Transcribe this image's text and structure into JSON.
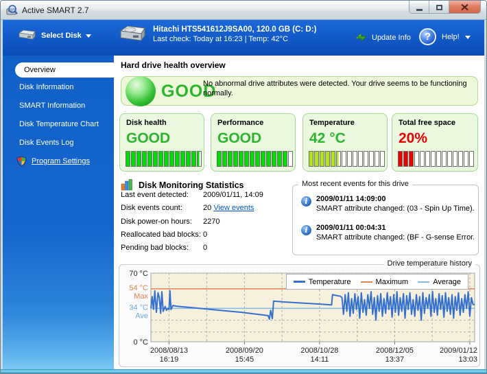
{
  "window": {
    "title": "Active SMART 2.7"
  },
  "toolbar": {
    "select_disk_label": "Select Disk",
    "drive_name": "Hitachi HTS541612J9SA00, 120.0 GB (C: D:)",
    "drive_status": "Last check: Today at 16:23 | Temp: 42°C",
    "update_info_label": "Update Info",
    "help_label": "Help!"
  },
  "sidebar": {
    "items": [
      {
        "label": "Overview",
        "active": true
      },
      {
        "label": "Disk Information"
      },
      {
        "label": "SMART Information"
      },
      {
        "label": "Disk Temperature Chart"
      },
      {
        "label": "Disk Events Log"
      }
    ],
    "settings_label": "Program Settings"
  },
  "main": {
    "heading": "Hard drive health overview",
    "banner": {
      "status": "GOOD",
      "message": "No abnormal drive attributes were detected. Your drive seems to be functioning normally."
    },
    "gauges": [
      {
        "title": "Disk health",
        "value": "GOOD",
        "value_color": "#2db52d",
        "bar_color": "#00dd00",
        "segments": 14,
        "filled": 13.5
      },
      {
        "title": "Performance",
        "value": "GOOD",
        "value_color": "#2db52d",
        "bar_color": "#00dd00",
        "segments": 14,
        "filled": 13
      },
      {
        "title": "Temperature",
        "value": "42 °C",
        "value_color": "#2db52d",
        "bar_color": "#b2e321",
        "segments": 14,
        "filled": 5.5
      },
      {
        "title": "Total free space",
        "value": "20%",
        "value_color": "#e80000",
        "bar_color": "#ee0000",
        "segments": 14,
        "filled": 3
      }
    ],
    "stats": {
      "title": "Disk Monitoring Statistics",
      "rows": [
        {
          "label": "Last event detected:",
          "value": "2009/01/11, 14:09"
        },
        {
          "label": "Disk events count:",
          "value": "20",
          "link": "View events"
        },
        {
          "label": "Disk power-on hours:",
          "value": "2270"
        },
        {
          "label": "Reallocated bad blocks:",
          "value": "0"
        },
        {
          "label": "Pending bad blocks:",
          "value": "0"
        }
      ]
    },
    "events": {
      "title": "Most recent events for this drive",
      "items": [
        {
          "time": "2009/01/11 14:09:00",
          "desc": "SMART attribute changed: (03 - Spin Up Time)..."
        },
        {
          "time": "2009/01/11 00:04:31",
          "desc": "SMART attribute changed: (BF - G-sense Error..."
        }
      ]
    }
  },
  "chart_data": {
    "type": "line",
    "title": "Drive temperature history",
    "ylabel": "Temperature °C",
    "ylim": [
      0,
      70
    ],
    "plot_bg": "#f7f0dd",
    "grid": true,
    "grid_color": "#aeb0a0",
    "grid_h_temps": [
      70,
      22,
      10
    ],
    "y_labels": [
      {
        "text": "70 °C",
        "temp": 70,
        "dy": 4,
        "color": "#222222"
      },
      {
        "text": "54 °C",
        "temp": 54,
        "dy": 2,
        "color": "#e2814e"
      },
      {
        "text": "Max",
        "temp": 54,
        "dy": 14,
        "color": "#e2814e"
      },
      {
        "text": "34 °C",
        "temp": 34,
        "dy": 2,
        "color": "#6aaade"
      },
      {
        "text": "Ave",
        "temp": 34,
        "dy": 14,
        "color": "#6aaade"
      },
      {
        "text": "0 °C",
        "temp": 0,
        "dy": 4,
        "color": "#222222"
      }
    ],
    "x_ticks": [
      {
        "date": "2008/08/13",
        "time": "16:19",
        "pos": 0.056
      },
      {
        "date": "2008/09/20",
        "time": "15:45",
        "pos": 0.289
      },
      {
        "date": "2008/10/28",
        "time": "14:11",
        "pos": 0.521
      },
      {
        "date": "2008/12/05",
        "time": "13:37",
        "pos": 0.753
      },
      {
        "date": "2009/01/12",
        "time": "13:03",
        "pos": 0.985
      }
    ],
    "series": [
      {
        "name": "Temperature",
        "color": "#3470cf",
        "width": 2,
        "points": [
          [
            0,
            34
          ],
          [
            0.4,
            46
          ],
          [
            0.8,
            33
          ],
          [
            1.2,
            52
          ],
          [
            1.7,
            30
          ],
          [
            2.2,
            50
          ],
          [
            2.6,
            45
          ],
          [
            3,
            29
          ],
          [
            3.4,
            51
          ],
          [
            3.8,
            31
          ],
          [
            4.4,
            36
          ],
          [
            4.8,
            32
          ],
          [
            5.2,
            34
          ],
          [
            5.6,
            33
          ],
          [
            5.9,
            52
          ],
          [
            6.2,
            33
          ],
          [
            6.8,
            37
          ],
          [
            8,
            36.2
          ],
          [
            12,
            35
          ],
          [
            16,
            33.8
          ],
          [
            20,
            32.5
          ],
          [
            24,
            31.2
          ],
          [
            28,
            30
          ],
          [
            31,
            28.8
          ],
          [
            34,
            27.6
          ],
          [
            36.2,
            26.6
          ],
          [
            36.6,
            23
          ],
          [
            37,
            32
          ],
          [
            37.5,
            23.5
          ],
          [
            37.9,
            41.5
          ],
          [
            41,
            40.6
          ],
          [
            45,
            39.8
          ],
          [
            49,
            39
          ],
          [
            53,
            38.2
          ],
          [
            55.8,
            37.5
          ],
          [
            56.1,
            48
          ],
          [
            57.3,
            47.2
          ],
          [
            58.5,
            46.4
          ]
        ],
        "noise": {
          "x_start": 59,
          "x_step": 0.5,
          "values": [
            45,
            28,
            48,
            31,
            50,
            26,
            44,
            29,
            49,
            33,
            46,
            24,
            50,
            30,
            43,
            27,
            48,
            34,
            51,
            28,
            45,
            22,
            47,
            31,
            49,
            26,
            44,
            29,
            50,
            33,
            46,
            25,
            48,
            30,
            51,
            27,
            45,
            31,
            49,
            24,
            47,
            33,
            50,
            28,
            43,
            26,
            48,
            32,
            46,
            22,
            50,
            29,
            45,
            34,
            48,
            26,
            51,
            30,
            44,
            27,
            49,
            33,
            47,
            25,
            50,
            31,
            45,
            28,
            48,
            24,
            46,
            32,
            50,
            27,
            44,
            30,
            48,
            34,
            51,
            26,
            45,
            38
          ]
        },
        "end_point": [
          100,
          38
        ]
      },
      {
        "name": "Maximum",
        "color": "#e2814e",
        "width": 1.5,
        "value": 54
      },
      {
        "name": "Average",
        "color": "#7fb9e6",
        "width": 1.5,
        "value": 34
      }
    ],
    "legend_position": "top-right"
  }
}
